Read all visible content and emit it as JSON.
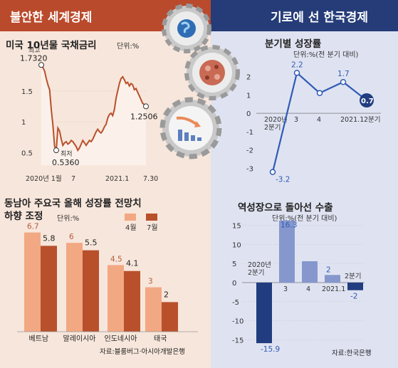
{
  "header": {
    "left": "불안한 세계경제",
    "right": "기로에 선 한국경제"
  },
  "colors": {
    "left_header": "#b94a2c",
    "right_header": "#253c78",
    "bar_light": "#f2a882",
    "bar_dark": "#b9502c",
    "blue_line": "#2f5bb5",
    "dark_navy": "#213d80"
  },
  "icons": [
    "gear-globe-icon",
    "gear-virus-icon",
    "gear-declining-chart-icon"
  ],
  "chart_data": [
    {
      "type": "line",
      "title": "미국 10년물 국채금리",
      "unit_label": "단위:%",
      "ylim": [
        0.3,
        2.05
      ],
      "yticks": [
        "0.5",
        "1",
        "1.5"
      ],
      "x_tick_labels": [
        "2020년 1월",
        "7",
        "2021.1",
        "7.30"
      ],
      "annotations": {
        "max_label": "최고",
        "max_value": "1.7320",
        "min_label": "최저",
        "min_value": "0.5360",
        "last_value": "1.2506"
      },
      "values": [
        1.92,
        1.88,
        1.82,
        1.7,
        1.6,
        1.52,
        1.2,
        0.95,
        0.6,
        0.54,
        0.9,
        0.85,
        0.72,
        0.62,
        0.66,
        0.68,
        0.64,
        0.66,
        0.7,
        0.68,
        0.64,
        0.6,
        0.54,
        0.58,
        0.64,
        0.7,
        0.66,
        0.62,
        0.66,
        0.7,
        0.68,
        0.72,
        0.78,
        0.84,
        0.88,
        0.84,
        0.82,
        0.86,
        0.92,
        0.96,
        1.06,
        1.12,
        1.14,
        1.1,
        1.2,
        1.38,
        1.5,
        1.62,
        1.7,
        1.73,
        1.68,
        1.62,
        1.64,
        1.58,
        1.62,
        1.6,
        1.52,
        1.54,
        1.48,
        1.42,
        1.36,
        1.3,
        1.28,
        1.2506
      ]
    },
    {
      "type": "line",
      "title": "분기별 성장률",
      "unit_label": "단위:%(전 분기 대비)",
      "categories": [
        "2020년\n2분기",
        "3",
        "4",
        "2021.1",
        "2분기"
      ],
      "values": [
        -3.2,
        2.2,
        1.1,
        1.7,
        0.7
      ],
      "value_labels": [
        "-3.2",
        "2.2",
        "",
        "1.7",
        "0.7"
      ],
      "yticks": [
        "2",
        "1",
        "0",
        "-1",
        "-2",
        "-3"
      ],
      "ylim": [
        -3.6,
        2.6
      ]
    },
    {
      "type": "bar",
      "title": "동남아 주요국 올해 성장률 전망치\n하향 조정",
      "unit_label": "단위:%",
      "categories": [
        "베트남",
        "말레이시아",
        "인도네시아",
        "태국"
      ],
      "series": [
        {
          "name": "4월",
          "values": [
            6.7,
            6,
            4.5,
            3
          ]
        },
        {
          "name": "7월",
          "values": [
            5.8,
            5.5,
            4.1,
            2
          ]
        }
      ],
      "value_labels": [
        [
          "6.7",
          "6",
          "4.5",
          "3"
        ],
        [
          "5.8",
          "5.5",
          "4.1",
          "2"
        ]
      ],
      "ylim": [
        0,
        7.5
      ],
      "source": "자료:블룸버그·아시아개발은행"
    },
    {
      "type": "bar",
      "title": "역성장으로 돌아선 수출",
      "unit_label": "단위:%(전 분기 대비)",
      "categories": [
        "2020년\n2분기",
        "3",
        "4",
        "2021.1",
        "2분기"
      ],
      "values": [
        -15.9,
        16.3,
        5.6,
        2,
        -2
      ],
      "value_labels": [
        "-15.9",
        "16.3",
        "",
        "2",
        "-2"
      ],
      "yticks": [
        "15",
        "10",
        "5",
        "0",
        "-5",
        "-10",
        "-15"
      ],
      "ylim": [
        -17,
        17
      ],
      "source": "자료:한국은행"
    }
  ]
}
